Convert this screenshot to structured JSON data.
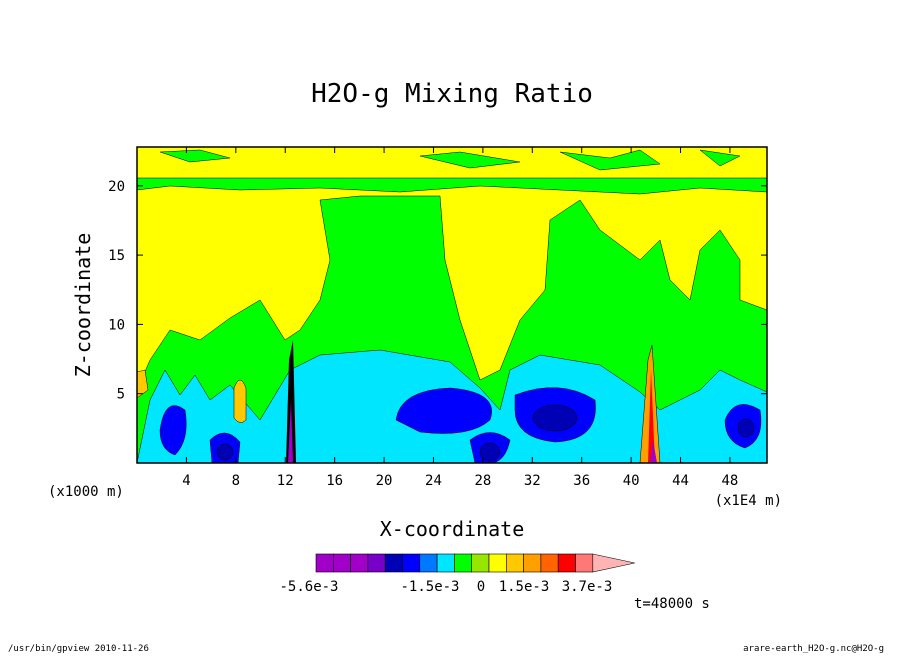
{
  "chart_data": {
    "type": "heatmap",
    "title": "H2O-g Mixing Ratio",
    "xlabel": "X-coordinate",
    "ylabel": "Z-coordinate",
    "x_unit_left": "(x1000 m)",
    "x_unit_right": "(x1E4 m)",
    "xlim": [
      0,
      51
    ],
    "ylim": [
      0,
      22.8
    ],
    "x_ticks": [
      4,
      8,
      12,
      16,
      20,
      24,
      28,
      32,
      36,
      40,
      44,
      48
    ],
    "y_ticks": [
      5,
      10,
      15,
      20
    ],
    "time_label": "t=48000 s",
    "colorbar": {
      "colors": [
        "#a000c8",
        "#a000c8",
        "#a000c8",
        "#7800c8",
        "#0000b4",
        "#0000ff",
        "#0078ff",
        "#00e6ff",
        "#00ff00",
        "#96e600",
        "#ffff00",
        "#ffc800",
        "#ffa000",
        "#ff6400",
        "#ff0000",
        "#ff7878",
        "#ffb4b4"
      ],
      "labels": [
        "-5.6e-3",
        "-1.5e-3",
        "0",
        "1.5e-3",
        "3.7e-3"
      ]
    },
    "field_colors": {
      "background": "#ffff00",
      "green": "#00ff00",
      "cyan": "#00e6ff",
      "blue": "#0000ff",
      "darkblue": "#0000b4",
      "orange": "#ffc800",
      "red": "#ff0000",
      "purple": "#a000c8"
    }
  },
  "footer": {
    "left": "/usr/bin/gpview  2010-11-26",
    "right": "arare-earth_H2O-g.nc@H2O-g"
  }
}
